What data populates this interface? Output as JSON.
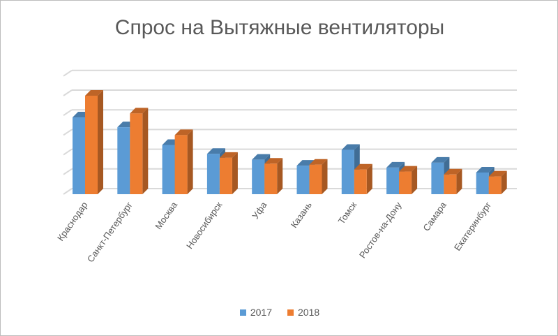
{
  "chart_data": {
    "type": "bar",
    "title": "Спрос на Вытяжные вентиляторы",
    "xlabel": "",
    "ylabel": "",
    "ylim": [
      0,
      6
    ],
    "grid": true,
    "legend_position": "bottom",
    "categories": [
      "Краснодар",
      "Санкт-Петербург",
      "Москва",
      "Новосибирск",
      "Уфа",
      "Казань",
      "Томск",
      "Ростов-на-Дону",
      "Самара",
      "Екатеринбург"
    ],
    "series": [
      {
        "name": "2017",
        "color": "#5b9bd5",
        "values": [
          3.9,
          3.4,
          2.5,
          2.05,
          1.75,
          1.45,
          2.25,
          1.35,
          1.6,
          1.1
        ]
      },
      {
        "name": "2018",
        "color": "#ed7d31",
        "values": [
          5.0,
          4.1,
          3.0,
          1.85,
          1.55,
          1.5,
          1.25,
          1.15,
          1.0,
          0.9
        ]
      }
    ]
  }
}
